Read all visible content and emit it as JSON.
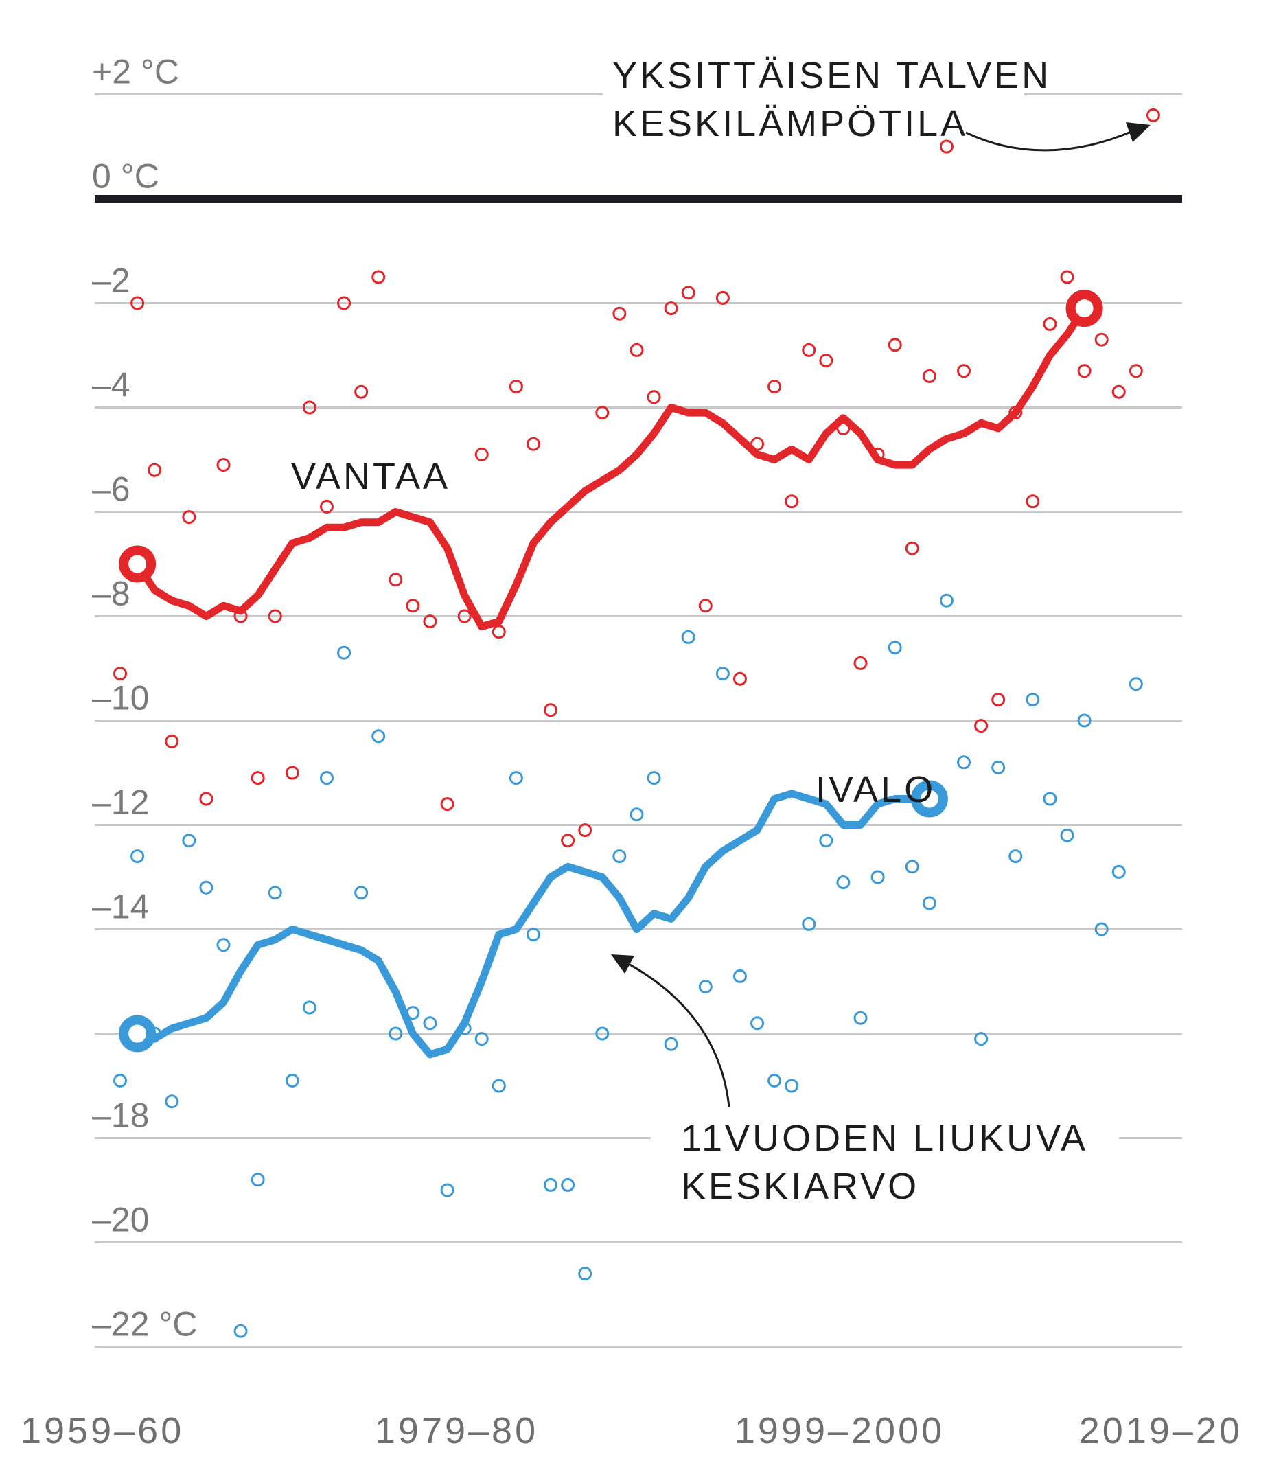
{
  "chart_data": {
    "type": "scatter",
    "title": "",
    "xlabel": "",
    "ylabel": "",
    "x_ticks": [
      "1959–60",
      "1979–80",
      "1999–2000",
      "2019–20"
    ],
    "y_ticks": [
      {
        "value": 2,
        "label": "+2 °C"
      },
      {
        "value": 0,
        "label": "0 °C"
      },
      {
        "value": -2,
        "label": "–2"
      },
      {
        "value": -4,
        "label": "–4"
      },
      {
        "value": -6,
        "label": "–6"
      },
      {
        "value": -8,
        "label": "–8"
      },
      {
        "value": -10,
        "label": "–10"
      },
      {
        "value": -12,
        "label": "–12"
      },
      {
        "value": -14,
        "label": "–14"
      },
      {
        "value": -16,
        "label": ""
      },
      {
        "value": -18,
        "label": "–18"
      },
      {
        "value": -20,
        "label": "–20"
      },
      {
        "value": -22,
        "label": "–22 °C"
      }
    ],
    "x_range": [
      1959,
      2020
    ],
    "ylim": [
      -22,
      2
    ],
    "grid": true,
    "series": [
      {
        "name": "VANTAA",
        "color": "#e3262a",
        "points": [
          [
            1959,
            -9.1
          ],
          [
            1960,
            -2.0
          ],
          [
            1961,
            -5.2
          ],
          [
            1962,
            -10.4
          ],
          [
            1963,
            -6.1
          ],
          [
            1964,
            -11.5
          ],
          [
            1965,
            -5.1
          ],
          [
            1966,
            -8.0
          ],
          [
            1967,
            -11.1
          ],
          [
            1968,
            -8.0
          ],
          [
            1969,
            -11.0
          ],
          [
            1970,
            -4.0
          ],
          [
            1971,
            -5.9
          ],
          [
            1972,
            -2.0
          ],
          [
            1973,
            -3.7
          ],
          [
            1974,
            -1.5
          ],
          [
            1975,
            -7.3
          ],
          [
            1976,
            -7.8
          ],
          [
            1977,
            -8.1
          ],
          [
            1978,
            -11.6
          ],
          [
            1979,
            -8.0
          ],
          [
            1980,
            -4.9
          ],
          [
            1981,
            -8.3
          ],
          [
            1982,
            -3.6
          ],
          [
            1983,
            -4.7
          ],
          [
            1984,
            -9.8
          ],
          [
            1985,
            -12.3
          ],
          [
            1986,
            -12.1
          ],
          [
            1987,
            -4.1
          ],
          [
            1988,
            -2.2
          ],
          [
            1989,
            -2.9
          ],
          [
            1990,
            -3.8
          ],
          [
            1991,
            -2.1
          ],
          [
            1992,
            -1.8
          ],
          [
            1993,
            -7.8
          ],
          [
            1994,
            -1.9
          ],
          [
            1995,
            -9.2
          ],
          [
            1996,
            -4.7
          ],
          [
            1997,
            -3.6
          ],
          [
            1998,
            -5.8
          ],
          [
            1999,
            -2.9
          ],
          [
            2000,
            -3.1
          ],
          [
            2001,
            -4.4
          ],
          [
            2002,
            -8.9
          ],
          [
            2003,
            -4.9
          ],
          [
            2004,
            -2.8
          ],
          [
            2005,
            -6.7
          ],
          [
            2006,
            -3.4
          ],
          [
            2007,
            1.0
          ],
          [
            2008,
            -3.3
          ],
          [
            2009,
            -10.1
          ],
          [
            2010,
            -9.6
          ],
          [
            2011,
            -4.1
          ],
          [
            2012,
            -5.8
          ],
          [
            2013,
            -2.4
          ],
          [
            2014,
            -1.5
          ],
          [
            2015,
            -3.3
          ],
          [
            2016,
            -2.7
          ],
          [
            2017,
            -3.7
          ],
          [
            2018,
            -3.3
          ],
          [
            2019,
            1.6
          ]
        ],
        "moving_average": [
          [
            1960,
            -7.0
          ],
          [
            1961,
            -7.5
          ],
          [
            1962,
            -7.7
          ],
          [
            1963,
            -7.8
          ],
          [
            1964,
            -8.0
          ],
          [
            1965,
            -7.8
          ],
          [
            1966,
            -7.9
          ],
          [
            1967,
            -7.6
          ],
          [
            1968,
            -7.1
          ],
          [
            1969,
            -6.6
          ],
          [
            1970,
            -6.5
          ],
          [
            1971,
            -6.3
          ],
          [
            1972,
            -6.3
          ],
          [
            1973,
            -6.2
          ],
          [
            1974,
            -6.2
          ],
          [
            1975,
            -6.0
          ],
          [
            1976,
            -6.1
          ],
          [
            1977,
            -6.2
          ],
          [
            1978,
            -6.7
          ],
          [
            1979,
            -7.6
          ],
          [
            1980,
            -8.2
          ],
          [
            1981,
            -8.1
          ],
          [
            1982,
            -7.4
          ],
          [
            1983,
            -6.6
          ],
          [
            1984,
            -6.2
          ],
          [
            1985,
            -5.9
          ],
          [
            1986,
            -5.6
          ],
          [
            1987,
            -5.4
          ],
          [
            1988,
            -5.2
          ],
          [
            1989,
            -4.9
          ],
          [
            1990,
            -4.5
          ],
          [
            1991,
            -4.0
          ],
          [
            1992,
            -4.1
          ],
          [
            1993,
            -4.1
          ],
          [
            1994,
            -4.3
          ],
          [
            1995,
            -4.6
          ],
          [
            1996,
            -4.9
          ],
          [
            1997,
            -5.0
          ],
          [
            1998,
            -4.8
          ],
          [
            1999,
            -5.0
          ],
          [
            2000,
            -4.5
          ],
          [
            2001,
            -4.2
          ],
          [
            2002,
            -4.5
          ],
          [
            2003,
            -5.0
          ],
          [
            2004,
            -5.1
          ],
          [
            2005,
            -5.1
          ],
          [
            2006,
            -4.8
          ],
          [
            2007,
            -4.6
          ],
          [
            2008,
            -4.5
          ],
          [
            2009,
            -4.3
          ],
          [
            2010,
            -4.4
          ],
          [
            2011,
            -4.1
          ],
          [
            2012,
            -3.6
          ],
          [
            2013,
            -3.0
          ],
          [
            2014,
            -2.6
          ],
          [
            2015,
            -2.1
          ]
        ]
      },
      {
        "name": "IVALO",
        "color": "#3a9ad9",
        "points": [
          [
            1959,
            -16.9
          ],
          [
            1960,
            -12.6
          ],
          [
            1961,
            -16.0
          ],
          [
            1962,
            -17.3
          ],
          [
            1963,
            -12.3
          ],
          [
            1964,
            -13.2
          ],
          [
            1965,
            -14.3
          ],
          [
            1966,
            -21.7
          ],
          [
            1967,
            -18.8
          ],
          [
            1968,
            -13.3
          ],
          [
            1969,
            -16.9
          ],
          [
            1970,
            -15.5
          ],
          [
            1971,
            -11.1
          ],
          [
            1972,
            -8.7
          ],
          [
            1973,
            -13.3
          ],
          [
            1974,
            -10.3
          ],
          [
            1975,
            -16.0
          ],
          [
            1976,
            -15.6
          ],
          [
            1977,
            -15.8
          ],
          [
            1978,
            -19.0
          ],
          [
            1979,
            -15.9
          ],
          [
            1980,
            -16.1
          ],
          [
            1981,
            -17.0
          ],
          [
            1982,
            -11.1
          ],
          [
            1983,
            -14.1
          ],
          [
            1984,
            -18.9
          ],
          [
            1985,
            -18.9
          ],
          [
            1986,
            -20.6
          ],
          [
            1987,
            -16.0
          ],
          [
            1988,
            -12.6
          ],
          [
            1989,
            -11.8
          ],
          [
            1990,
            -11.1
          ],
          [
            1991,
            -16.2
          ],
          [
            1992,
            -8.4
          ],
          [
            1993,
            -15.1
          ],
          [
            1994,
            -9.1
          ],
          [
            1995,
            -14.9
          ],
          [
            1996,
            -15.8
          ],
          [
            1997,
            -16.9
          ],
          [
            1998,
            -17.0
          ],
          [
            1999,
            -13.9
          ],
          [
            2000,
            -12.3
          ],
          [
            2001,
            -13.1
          ],
          [
            2002,
            -15.7
          ],
          [
            2003,
            -13.0
          ],
          [
            2004,
            -8.6
          ],
          [
            2005,
            -12.8
          ],
          [
            2006,
            -13.5
          ],
          [
            2007,
            -7.7
          ],
          [
            2008,
            -10.8
          ],
          [
            2009,
            -16.1
          ],
          [
            2010,
            -10.9
          ],
          [
            2011,
            -12.6
          ],
          [
            2012,
            -9.6
          ],
          [
            2013,
            -11.5
          ],
          [
            2014,
            -12.2
          ],
          [
            2015,
            -10.0
          ],
          [
            2016,
            -14.0
          ],
          [
            2017,
            -12.9
          ],
          [
            2018,
            -9.3
          ]
        ],
        "moving_average": [
          [
            1960,
            -16.0
          ],
          [
            1961,
            -16.1
          ],
          [
            1962,
            -15.9
          ],
          [
            1963,
            -15.8
          ],
          [
            1964,
            -15.7
          ],
          [
            1965,
            -15.4
          ],
          [
            1966,
            -14.8
          ],
          [
            1967,
            -14.3
          ],
          [
            1968,
            -14.2
          ],
          [
            1969,
            -14.0
          ],
          [
            1970,
            -14.1
          ],
          [
            1971,
            -14.2
          ],
          [
            1972,
            -14.3
          ],
          [
            1973,
            -14.4
          ],
          [
            1974,
            -14.6
          ],
          [
            1975,
            -15.2
          ],
          [
            1976,
            -16.0
          ],
          [
            1977,
            -16.4
          ],
          [
            1978,
            -16.3
          ],
          [
            1979,
            -15.8
          ],
          [
            1980,
            -15.0
          ],
          [
            1981,
            -14.1
          ],
          [
            1982,
            -14.0
          ],
          [
            1983,
            -13.5
          ],
          [
            1984,
            -13.0
          ],
          [
            1985,
            -12.8
          ],
          [
            1986,
            -12.9
          ],
          [
            1987,
            -13.0
          ],
          [
            1988,
            -13.4
          ],
          [
            1989,
            -14.0
          ],
          [
            1990,
            -13.7
          ],
          [
            1991,
            -13.8
          ],
          [
            1992,
            -13.4
          ],
          [
            1993,
            -12.8
          ],
          [
            1994,
            -12.5
          ],
          [
            1995,
            -12.3
          ],
          [
            1996,
            -12.1
          ],
          [
            1997,
            -11.5
          ],
          [
            1998,
            -11.4
          ],
          [
            1999,
            -11.5
          ],
          [
            2000,
            -11.6
          ],
          [
            2001,
            -12.0
          ],
          [
            2002,
            -12.0
          ],
          [
            2003,
            -11.6
          ],
          [
            2004,
            -11.5
          ],
          [
            2005,
            -11.5
          ],
          [
            2006,
            -11.5
          ]
        ]
      }
    ],
    "annotations": {
      "point_label": [
        "YKSITTÄISEN TALVEN",
        "KESKILÄMPÖTILA"
      ],
      "average_label": [
        "11VUODEN LIUKUVA",
        "KESKIARVO"
      ]
    }
  }
}
